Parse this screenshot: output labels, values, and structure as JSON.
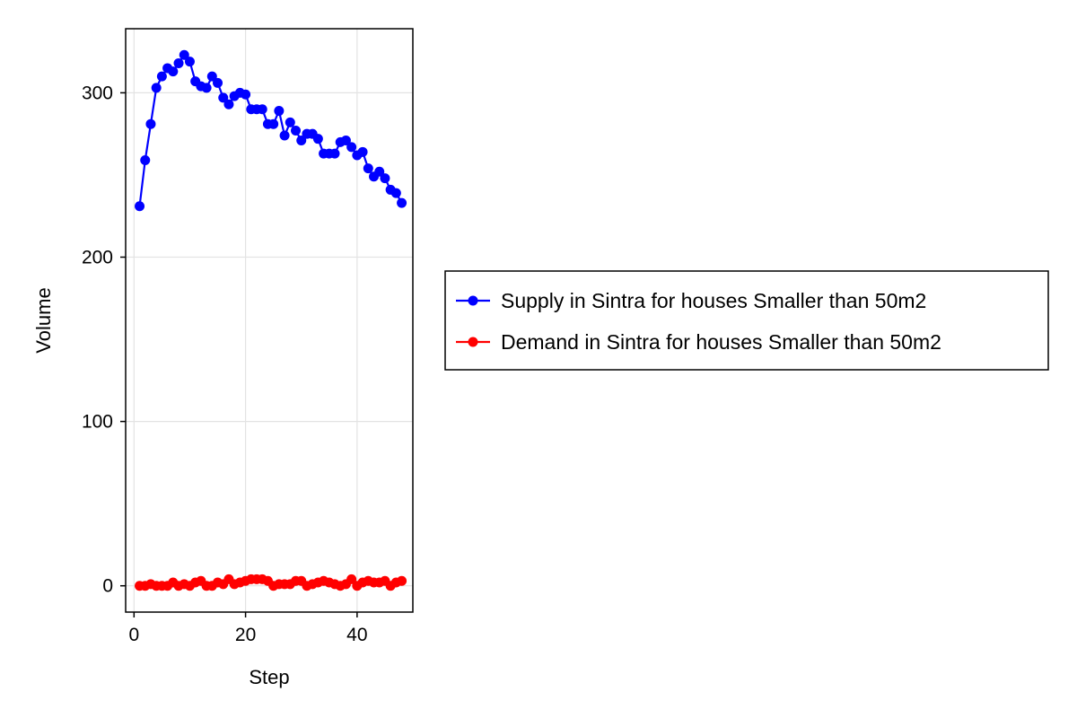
{
  "chart_data": {
    "type": "line",
    "xlabel": "Step",
    "ylabel": "Volume",
    "xlim": [
      -1.5,
      50
    ],
    "ylim": [
      -16,
      339
    ],
    "x_ticks": [
      0,
      20,
      40
    ],
    "y_ticks": [
      0,
      100,
      200,
      300
    ],
    "grid": true,
    "legend_position": "right",
    "x": [
      1,
      2,
      3,
      4,
      5,
      6,
      7,
      8,
      9,
      10,
      11,
      12,
      13,
      14,
      15,
      16,
      17,
      18,
      19,
      20,
      21,
      22,
      23,
      24,
      25,
      26,
      27,
      28,
      29,
      30,
      31,
      32,
      33,
      34,
      35,
      36,
      37,
      38,
      39,
      40,
      41,
      42,
      43,
      44,
      45,
      46,
      47,
      48
    ],
    "series": [
      {
        "name": "Supply in Sintra for houses Smaller than 50m2",
        "color": "#0000ff",
        "marker": "circle",
        "values": [
          231,
          259,
          281,
          303,
          310,
          315,
          313,
          318,
          323,
          319,
          307,
          304,
          303,
          310,
          306,
          297,
          293,
          298,
          300,
          299,
          290,
          290,
          290,
          281,
          281,
          289,
          274,
          282,
          277,
          271,
          275,
          275,
          272,
          263,
          263,
          263,
          270,
          271,
          267,
          262,
          264,
          254,
          249,
          252,
          248,
          241,
          239,
          233
        ]
      },
      {
        "name": "Demand in Sintra for houses Smaller than 50m2",
        "color": "#ff0000",
        "marker": "circle",
        "values": [
          0,
          0,
          1,
          0,
          0,
          0,
          2,
          0,
          1,
          0,
          2,
          3,
          0,
          0,
          2,
          1,
          4,
          1,
          2,
          3,
          4,
          4,
          4,
          3,
          0,
          1,
          1,
          1,
          3,
          3,
          0,
          1,
          2,
          3,
          2,
          1,
          0,
          1,
          4,
          0,
          2,
          3,
          2,
          2,
          3,
          0,
          2,
          3
        ]
      }
    ]
  }
}
